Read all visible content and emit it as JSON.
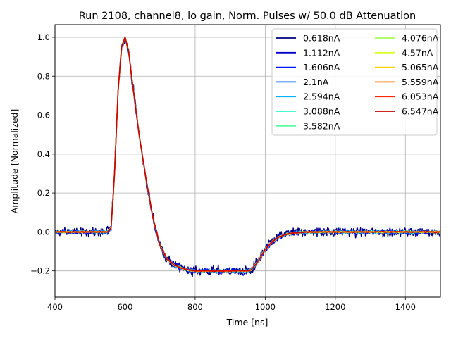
{
  "chart_data": {
    "type": "line",
    "title": "Run 2108, channel8, lo gain, Norm. Pulses w/ 50.0 dB Attenuation",
    "xlabel": "Time [ns]",
    "ylabel": "Amplitude [Normalized]",
    "xlim": [
      400,
      1500
    ],
    "ylim": [
      -0.335,
      1.065
    ],
    "xticks": [
      400,
      600,
      800,
      1000,
      1200,
      1400
    ],
    "xtick_labels": [
      "400",
      "600",
      "800",
      "1000",
      "1200",
      "1400"
    ],
    "yticks": [
      -0.2,
      0.0,
      0.2,
      0.4,
      0.6,
      0.8,
      1.0
    ],
    "ytick_labels": [
      "−0.2",
      "0.0",
      "0.2",
      "0.4",
      "0.6",
      "0.8",
      "1.0"
    ],
    "grid": true,
    "legend_position": "upper-right",
    "legend_columns": 2,
    "pulse_shape": {
      "t": [
        400,
        550,
        560,
        570,
        580,
        590,
        600,
        610,
        620,
        640,
        660,
        680,
        700,
        720,
        740,
        760,
        780,
        800,
        850,
        900,
        950,
        960,
        980,
        1000,
        1020,
        1040,
        1060,
        1080,
        1100,
        1150,
        1200,
        1300,
        1500
      ],
      "amplitude": [
        0.0,
        0.0,
        0.02,
        0.3,
        0.72,
        0.95,
        1.0,
        0.93,
        0.78,
        0.5,
        0.27,
        0.07,
        -0.07,
        -0.14,
        -0.17,
        -0.185,
        -0.195,
        -0.2,
        -0.2,
        -0.2,
        -0.2,
        -0.195,
        -0.15,
        -0.09,
        -0.05,
        -0.025,
        -0.012,
        -0.005,
        -0.002,
        0.0,
        0.0,
        0.0,
        0.0
      ]
    },
    "series": [
      {
        "name": "0.618nA",
        "color": "#00007f",
        "noise": 0.026
      },
      {
        "name": "1.112nA",
        "color": "#0000c8",
        "noise": 0.016
      },
      {
        "name": "1.606nA",
        "color": "#0018ff",
        "noise": 0.011
      },
      {
        "name": "2.1nA",
        "color": "#0064ff",
        "noise": 0.008
      },
      {
        "name": "2.594nA",
        "color": "#00b4ff",
        "noise": 0.007
      },
      {
        "name": "3.088nA",
        "color": "#27ffcf",
        "noise": 0.006
      },
      {
        "name": "3.582nA",
        "color": "#5cffa3",
        "noise": 0.005
      },
      {
        "name": "4.076nA",
        "color": "#a3ff5c",
        "noise": 0.005
      },
      {
        "name": "4.57nA",
        "color": "#d8ff27",
        "noise": 0.004
      },
      {
        "name": "5.065nA",
        "color": "#ffd200",
        "noise": 0.004
      },
      {
        "name": "5.559nA",
        "color": "#ff7a00",
        "noise": 0.004
      },
      {
        "name": "6.053nA",
        "color": "#ff2700",
        "noise": 0.003
      },
      {
        "name": "6.547nA",
        "color": "#c80000",
        "noise": 0.003
      }
    ]
  }
}
